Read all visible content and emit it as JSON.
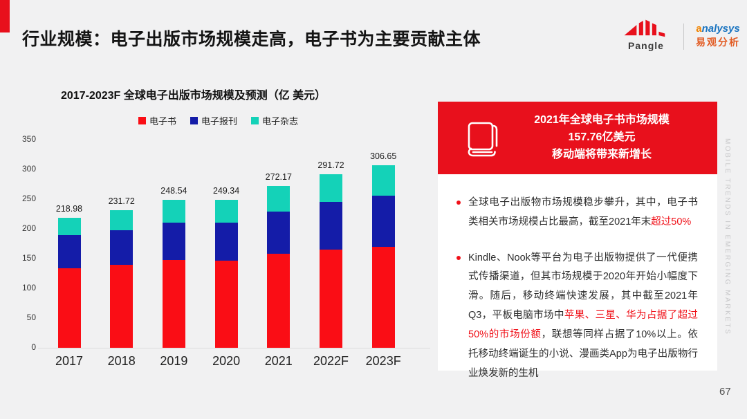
{
  "header": {
    "title": "行业规模：电子出版市场规模走高，电子书为主要贡献主体",
    "pangle_label": "Pangle",
    "analysys_en_first": "a",
    "analysys_en_rest": "nalysys",
    "analysys_cn": "易观分析"
  },
  "chart_data": {
    "type": "bar",
    "stacked": true,
    "title": "2017-2023F 全球电子出版市场规模及预测（亿 美元）",
    "categories": [
      "2017",
      "2018",
      "2019",
      "2020",
      "2021",
      "2022F",
      "2023F"
    ],
    "series": [
      {
        "name": "电子书",
        "color": "#fa0d15",
        "values": [
          134,
          140,
          148,
          147,
          157.76,
          165,
          170
        ]
      },
      {
        "name": "电子报刊",
        "color": "#141ca8",
        "values": [
          55,
          58,
          63,
          63,
          71,
          80,
          86
        ]
      },
      {
        "name": "电子杂志",
        "color": "#14d2b8",
        "values": [
          29.98,
          33.72,
          37.54,
          39.34,
          43.41,
          46.72,
          50.65
        ]
      }
    ],
    "totals": [
      218.98,
      231.72,
      248.54,
      249.34,
      272.17,
      291.72,
      306.65
    ],
    "total_labels": [
      "218.98",
      "231.72",
      "248.54",
      "249.34",
      "272.17",
      "291.72",
      "306.65"
    ],
    "ylim": [
      0,
      350
    ],
    "yticks": [
      350,
      300,
      250,
      200,
      150,
      100,
      50,
      0
    ],
    "legend_position": "top",
    "grid": false
  },
  "callout": {
    "line1": "2021年全球电子书市场规模",
    "line2": "157.76亿美元",
    "line3": "移动端将带来新增长"
  },
  "bullets": [
    {
      "parts": [
        {
          "text": "全球电子出版物市场规模稳步攀升，其中，电子书类相关市场规模占比最高，截至2021年末",
          "highlight": false
        },
        {
          "text": "超过50%",
          "highlight": true
        }
      ]
    },
    {
      "parts": [
        {
          "text": "Kindle、Nook等平台为电子出版物提供了一代便携式传播渠道，但其市场规模于2020年开始小幅度下滑。随后，移动终端快速发展，其中截至2021年Q3，平板电脑市场中",
          "highlight": false
        },
        {
          "text": "苹果、三星、华为占据了超过50%的市场份额",
          "highlight": true
        },
        {
          "text": "，联想等同样占据了10%以上。依托移动终端诞生的小说、漫画类App为电子出版物行业焕发新的生机",
          "highlight": false
        }
      ]
    }
  ],
  "side_text": "MOBILE TRENDS IN EMERGING MARKETS",
  "page_number": "67",
  "colors": {
    "accent_red": "#e8101c",
    "highlight_red": "#f01018",
    "slide_bg": "#f1f1f2"
  }
}
